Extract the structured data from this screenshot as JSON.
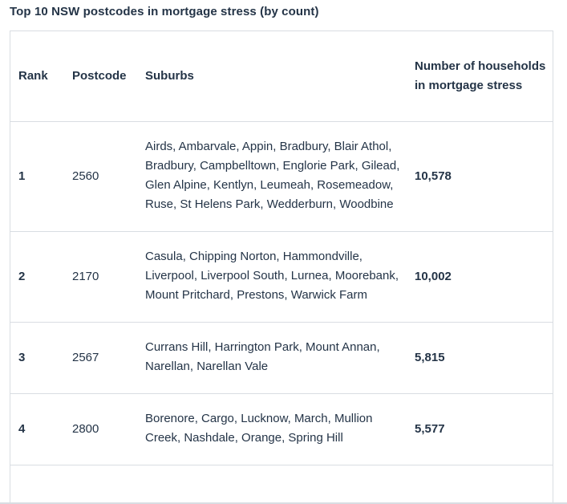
{
  "title": "Top 10 NSW postcodes in mortgage stress (by count)",
  "columns": {
    "rank": "Rank",
    "postcode": "Postcode",
    "suburbs": "Suburbs",
    "households": "Number of households in mortgage stress"
  },
  "rows": [
    {
      "rank": "1",
      "postcode": "2560",
      "suburbs": "Airds, Ambarvale, Appin, Bradbury, Blair Athol, Bradbury, Campbelltown, Englorie Park, Gilead, Glen Alpine, Kentlyn, Leumeah, Rosemeadow, Ruse, St Helens Park, Wedderburn, Woodbine",
      "households": "10,578"
    },
    {
      "rank": "2",
      "postcode": "2170",
      "suburbs": "Casula, Chipping Norton, Hammondville, Liverpool, Liverpool South, Lurnea, Moorebank, Mount Pritchard, Prestons, Warwick Farm",
      "households": "10,002"
    },
    {
      "rank": "3",
      "postcode": "2567",
      "suburbs": "Currans Hill, Harrington Park, Mount Annan, Narellan, Narellan Vale",
      "households": "5,815"
    },
    {
      "rank": "4",
      "postcode": "2800",
      "suburbs": "Borenore, Cargo, Lucknow, March, Mullion Creek, Nashdale, Orange, Spring Hill",
      "households": "5,577"
    }
  ]
}
